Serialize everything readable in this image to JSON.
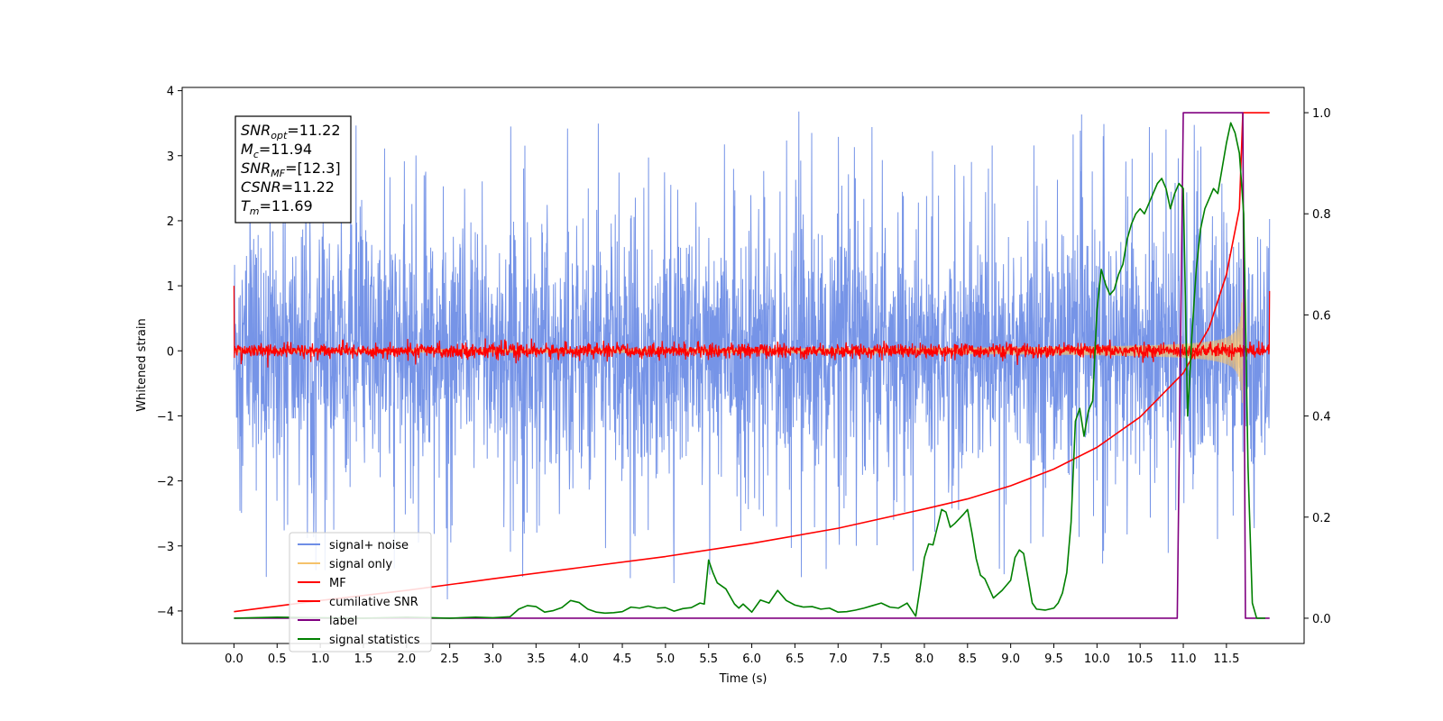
{
  "chart_data": {
    "type": "line",
    "xlabel": "Time (s)",
    "ylabel_left": "Whitened strain",
    "ylabel_right": "",
    "xlim": [
      -0.6,
      12.4
    ],
    "ylim_left": [
      -4.5,
      4.05
    ],
    "ylim_right": [
      -0.05,
      1.05
    ],
    "grid": false,
    "legend_position": "lower-left",
    "x_ticks": [
      0.0,
      0.5,
      1.0,
      1.5,
      2.0,
      2.5,
      3.0,
      3.5,
      4.0,
      4.5,
      5.0,
      5.5,
      6.0,
      6.5,
      7.0,
      7.5,
      8.0,
      8.5,
      9.0,
      9.5,
      10.0,
      10.5,
      11.0,
      11.5
    ],
    "x_tick_labels": [
      "0.0",
      "0.5",
      "1.0",
      "1.5",
      "2.0",
      "2.5",
      "3.0",
      "3.5",
      "4.0",
      "4.5",
      "5.0",
      "5.5",
      "6.0",
      "6.5",
      "7.0",
      "7.5",
      "8.0",
      "8.5",
      "9.0",
      "9.5",
      "10.0",
      "10.5",
      "11.0",
      "11.5"
    ],
    "y_left_ticks": [
      4,
      3,
      2,
      1,
      0,
      -1,
      -2,
      -3,
      -4
    ],
    "y_left_tick_labels": [
      "4",
      "3",
      "2",
      "1",
      "0",
      "−1",
      "−2",
      "−3",
      "−4"
    ],
    "y_right_ticks": [
      1.0,
      0.8,
      0.6,
      0.4,
      0.2,
      0.0
    ],
    "y_right_tick_labels": [
      "1.0",
      "0.8",
      "0.6",
      "0.4",
      "0.2",
      "0.0"
    ],
    "annotation": [
      {
        "base": "SNR",
        "sub": "opt",
        "rest": "=11.22"
      },
      {
        "base": "M",
        "sub": "c",
        "rest": "=11.94"
      },
      {
        "base": "SNR",
        "sub": "MF",
        "rest": "=[12.3]"
      },
      {
        "base": "CSNR",
        "sub": "",
        "rest": "=11.22"
      },
      {
        "base": "T",
        "sub": "m",
        "rest": "=11.69"
      }
    ],
    "series": [
      {
        "name": "signal+ noise",
        "color": "#6f8ee6",
        "axis": "left",
        "style": "noise",
        "x_range": [
          0.0,
          12.0
        ],
        "amplitude_typical": 1.6,
        "peak": 3.68
      },
      {
        "name": "signal only",
        "color": "#f5c26b",
        "axis": "left",
        "style": "chirp",
        "x_range": [
          0.0,
          11.69
        ],
        "peak_amplitude": 0.8
      },
      {
        "name": "MF",
        "color": "#ff0000",
        "axis": "left",
        "style": "noise",
        "x_range": [
          0.0,
          12.0
        ],
        "amplitude_typical": 0.12,
        "start_value": 1.0,
        "end_value": 0.92
      },
      {
        "name": "cumilative SNR",
        "color": "#ff0000",
        "axis": "right",
        "x": [
          0.0,
          1.0,
          2.0,
          3.0,
          4.0,
          5.0,
          6.0,
          7.0,
          8.0,
          8.5,
          9.0,
          9.5,
          10.0,
          10.5,
          11.0,
          11.3,
          11.5,
          11.65,
          11.69,
          12.0
        ],
        "y": [
          0.013,
          0.035,
          0.055,
          0.078,
          0.1,
          0.122,
          0.148,
          0.178,
          0.216,
          0.236,
          0.262,
          0.295,
          0.338,
          0.398,
          0.485,
          0.575,
          0.68,
          0.81,
          1.0,
          1.0
        ]
      },
      {
        "name": "label",
        "color": "#800080",
        "axis": "right",
        "x": [
          0.0,
          10.93,
          11.0,
          11.69,
          11.72,
          12.0
        ],
        "y": [
          0.0,
          0.0,
          1.0,
          1.0,
          0.0,
          0.0
        ]
      },
      {
        "name": "signal statistics",
        "color": "#008000",
        "axis": "right",
        "x": [
          0.0,
          0.5,
          1.0,
          1.5,
          2.0,
          2.5,
          2.8,
          3.0,
          3.2,
          3.3,
          3.4,
          3.5,
          3.6,
          3.7,
          3.8,
          3.9,
          4.0,
          4.1,
          4.2,
          4.3,
          4.4,
          4.5,
          4.6,
          4.7,
          4.8,
          4.9,
          5.0,
          5.1,
          5.2,
          5.3,
          5.4,
          5.45,
          5.5,
          5.55,
          5.6,
          5.7,
          5.8,
          5.85,
          5.9,
          6.0,
          6.1,
          6.2,
          6.3,
          6.4,
          6.5,
          6.6,
          6.7,
          6.8,
          6.9,
          7.0,
          7.1,
          7.2,
          7.3,
          7.4,
          7.5,
          7.6,
          7.7,
          7.8,
          7.9,
          7.95,
          8.0,
          8.05,
          8.1,
          8.15,
          8.2,
          8.25,
          8.3,
          8.35,
          8.4,
          8.45,
          8.5,
          8.55,
          8.6,
          8.65,
          8.7,
          8.8,
          8.9,
          9.0,
          9.05,
          9.1,
          9.15,
          9.2,
          9.25,
          9.3,
          9.4,
          9.5,
          9.55,
          9.6,
          9.65,
          9.7,
          9.75,
          9.8,
          9.85,
          9.9,
          9.95,
          10.0,
          10.05,
          10.1,
          10.15,
          10.2,
          10.25,
          10.3,
          10.35,
          10.4,
          10.45,
          10.5,
          10.55,
          10.6,
          10.65,
          10.7,
          10.75,
          10.8,
          10.85,
          10.9,
          10.95,
          11.0,
          11.05,
          11.1,
          11.15,
          11.2,
          11.25,
          11.3,
          11.35,
          11.4,
          11.45,
          11.5,
          11.55,
          11.6,
          11.65,
          11.7,
          11.75,
          11.8,
          11.85,
          11.9,
          11.95
        ],
        "y": [
          0.0,
          0.002,
          0.001,
          0.0,
          0.002,
          0.0,
          0.002,
          0.001,
          0.003,
          0.018,
          0.025,
          0.023,
          0.012,
          0.015,
          0.021,
          0.035,
          0.031,
          0.018,
          0.012,
          0.01,
          0.011,
          0.013,
          0.022,
          0.02,
          0.024,
          0.02,
          0.021,
          0.014,
          0.019,
          0.021,
          0.03,
          0.028,
          0.115,
          0.09,
          0.07,
          0.058,
          0.028,
          0.02,
          0.028,
          0.012,
          0.036,
          0.03,
          0.055,
          0.035,
          0.026,
          0.022,
          0.023,
          0.018,
          0.02,
          0.012,
          0.013,
          0.016,
          0.02,
          0.025,
          0.03,
          0.022,
          0.02,
          0.03,
          0.004,
          0.06,
          0.12,
          0.147,
          0.145,
          0.18,
          0.215,
          0.21,
          0.18,
          0.187,
          0.196,
          0.205,
          0.215,
          0.17,
          0.118,
          0.085,
          0.078,
          0.04,
          0.055,
          0.075,
          0.12,
          0.135,
          0.128,
          0.08,
          0.03,
          0.018,
          0.016,
          0.02,
          0.03,
          0.05,
          0.09,
          0.19,
          0.39,
          0.415,
          0.36,
          0.41,
          0.43,
          0.61,
          0.69,
          0.66,
          0.64,
          0.65,
          0.68,
          0.7,
          0.75,
          0.78,
          0.8,
          0.81,
          0.8,
          0.82,
          0.84,
          0.86,
          0.87,
          0.85,
          0.81,
          0.84,
          0.86,
          0.85,
          0.4,
          0.56,
          0.69,
          0.77,
          0.81,
          0.83,
          0.85,
          0.84,
          0.89,
          0.94,
          0.98,
          0.96,
          0.92,
          0.8,
          0.3,
          0.03,
          0.0,
          0.0,
          0.0
        ]
      }
    ]
  }
}
